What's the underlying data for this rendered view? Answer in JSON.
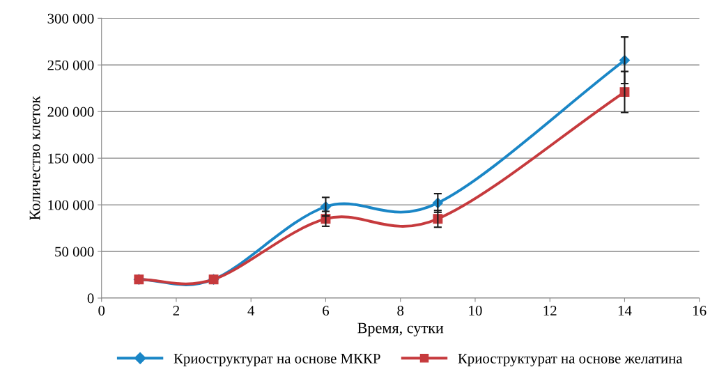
{
  "chart_data": {
    "type": "line",
    "xlabel": "Время, сутки",
    "ylabel": "Количество клеток",
    "xlim": [
      0,
      16
    ],
    "xticks": [
      0,
      2,
      4,
      6,
      8,
      10,
      12,
      14,
      16
    ],
    "ylim": [
      0,
      300000
    ],
    "yticks": [
      {
        "value": 0,
        "label": "0"
      },
      {
        "value": 50000,
        "label": "50 000"
      },
      {
        "value": 100000,
        "label": "100 000"
      },
      {
        "value": 150000,
        "label": "150 000"
      },
      {
        "value": 200000,
        "label": "200 000"
      },
      {
        "value": 250000,
        "label": "250 000"
      },
      {
        "value": 300000,
        "label": "300 000"
      }
    ],
    "grid": "y",
    "legend": "bottom",
    "line_style": "solid",
    "x": [
      1,
      3,
      6,
      9,
      14
    ],
    "series": [
      {
        "name": "Криоструктурат на основе МККР",
        "color": "#1a86c6",
        "marker": "diamond",
        "values": [
          20000,
          20000,
          98000,
          102000,
          255000
        ],
        "errors": [
          null,
          null,
          10000,
          10000,
          25000
        ]
      },
      {
        "name": "Криоструктурат на основе желатина",
        "color": "#c63a3d",
        "marker": "square",
        "values": [
          20000,
          20000,
          85000,
          85000,
          221000
        ],
        "errors": [
          null,
          null,
          8000,
          9000,
          22000
        ]
      }
    ]
  }
}
